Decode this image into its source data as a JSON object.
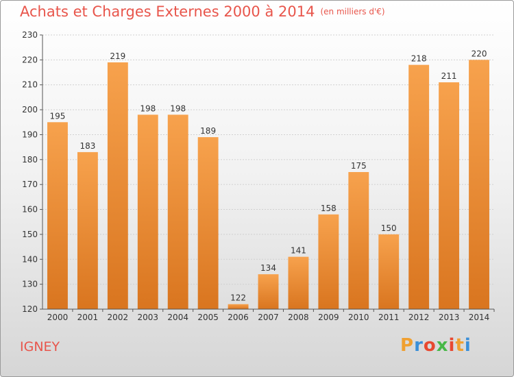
{
  "title": "Achats et Charges Externes 2000 à 2014",
  "title_unit": "(en milliers d'€)",
  "commune": "IGNEY",
  "logo": {
    "letters": [
      "P",
      "r",
      "o",
      "x",
      "i",
      "t",
      "i"
    ],
    "colors": [
      "#f0a030",
      "#3a8fd8",
      "#e84830",
      "#48b848",
      "#e84830",
      "#f0a030",
      "#3a8fd8"
    ]
  },
  "colors": {
    "title": "#e8554b",
    "bar_light": "#f7a24d",
    "bar_dark": "#d9751f"
  },
  "chart_data": {
    "type": "bar",
    "categories": [
      "2000",
      "2001",
      "2002",
      "2003",
      "2004",
      "2005",
      "2006",
      "2007",
      "2008",
      "2009",
      "2010",
      "2011",
      "2012",
      "2013",
      "2014"
    ],
    "values": [
      195,
      183,
      219,
      198,
      198,
      189,
      122,
      134,
      141,
      158,
      175,
      150,
      218,
      211,
      220
    ],
    "ylim": [
      120,
      230
    ],
    "yticks": [
      120,
      130,
      140,
      150,
      160,
      170,
      180,
      190,
      200,
      210,
      220,
      230
    ],
    "grid": true,
    "legend": "none"
  }
}
